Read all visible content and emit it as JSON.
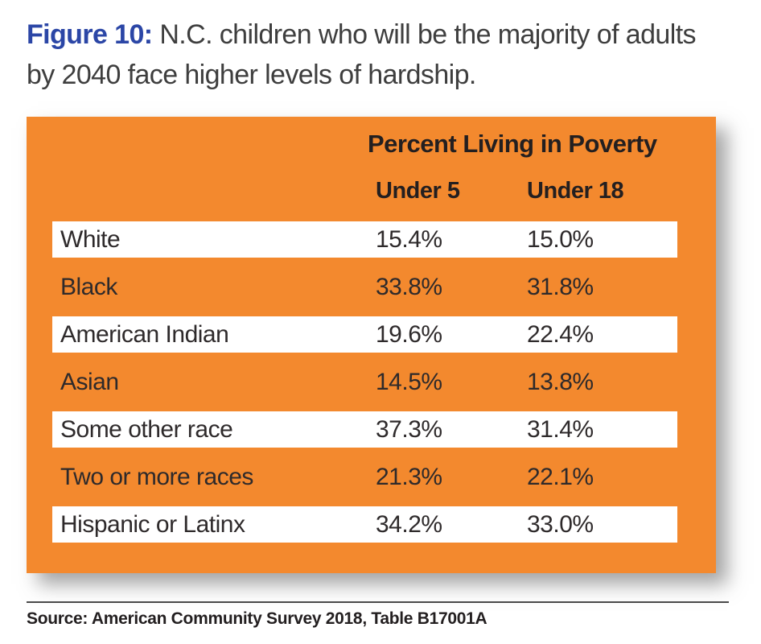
{
  "title": {
    "prefix": "Figure 10:",
    "rest": " N.C. children who will be the majority of adults by 2040 face higher levels of hardship."
  },
  "table": {
    "group_header": "Percent Living in Poverty",
    "columns": [
      "Under 5",
      "Under 18"
    ],
    "rows": [
      {
        "label": "White",
        "under5": "15.4%",
        "under18": "15.0%"
      },
      {
        "label": "Black",
        "under5": "33.8%",
        "under18": "31.8%"
      },
      {
        "label": "American Indian",
        "under5": "19.6%",
        "under18": "22.4%"
      },
      {
        "label": "Asian",
        "under5": "14.5%",
        "under18": "13.8%"
      },
      {
        "label": "Some other race",
        "under5": "37.3%",
        "under18": "31.4%"
      },
      {
        "label": "Two or more races",
        "under5": "21.3%",
        "under18": "22.1%"
      },
      {
        "label": "Hispanic or Latinx",
        "under5": "34.2%",
        "under18": "33.0%"
      }
    ]
  },
  "source": "Source: American Community Survey 2018, Table B17001A",
  "colors": {
    "accent_blue": "#2b46a6",
    "panel_orange": "#f3892e",
    "row_band_white": "#ffffff",
    "text_dark": "#231f20",
    "title_gray": "#3e3e3e"
  },
  "chart_data": {
    "type": "table",
    "title": "Percent Living in Poverty",
    "categories": [
      "White",
      "Black",
      "American Indian",
      "Asian",
      "Some other race",
      "Two or more races",
      "Hispanic or Latinx"
    ],
    "series": [
      {
        "name": "Under 5",
        "values": [
          15.4,
          33.8,
          19.6,
          14.5,
          37.3,
          21.3,
          34.2
        ]
      },
      {
        "name": "Under 18",
        "values": [
          15.0,
          31.8,
          22.4,
          13.8,
          31.4,
          22.1,
          33.0
        ]
      }
    ],
    "units": "percent",
    "notes": "Figure 10: N.C. children who will be the majority of adults by 2040 face higher levels of hardship. Source: American Community Survey 2018, Table B17001A"
  }
}
